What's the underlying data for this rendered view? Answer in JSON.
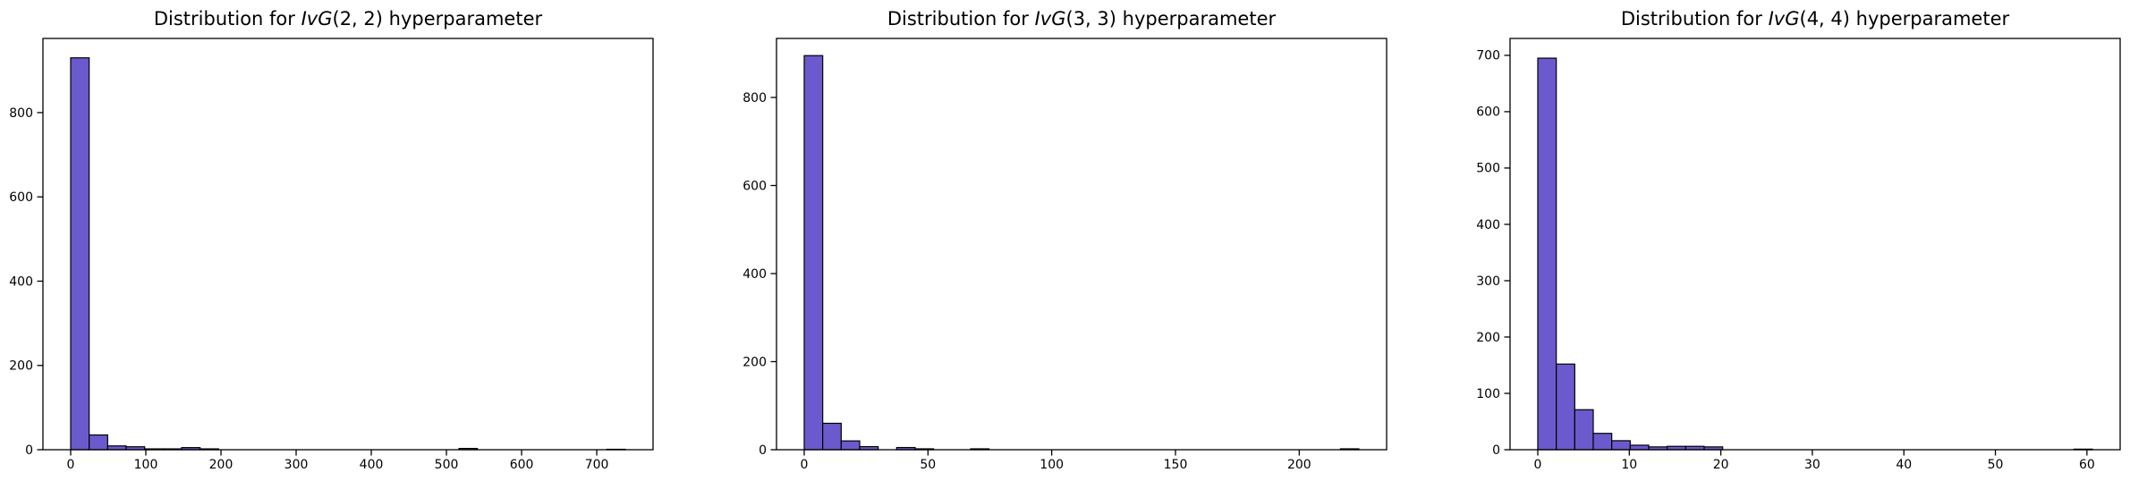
{
  "figure": {
    "background": "#ffffff",
    "bar_fill": "#6a5acd",
    "bar_edge": "#000000",
    "axis_color": "#000000",
    "text_color": "#000000"
  },
  "chart_data": [
    {
      "type": "bar",
      "subtype": "histogram",
      "id": "ivg-2-2",
      "title": "Distribution for IvG(2, 2) hyperparameter",
      "title_prefix": "Distribution for ",
      "title_italic": "IvG",
      "title_args": "(2, 2)",
      "title_suffix": " hyperparameter",
      "bin_start": 0,
      "bin_width": 24.6,
      "counts": [
        930,
        35,
        9,
        7,
        2,
        2,
        5,
        2,
        0,
        0,
        0,
        0,
        0,
        0,
        0,
        0,
        0,
        0,
        0,
        0,
        0,
        3,
        0,
        0,
        0,
        0,
        0,
        0,
        0,
        1
      ],
      "xlim": [
        -36.9,
        774.9
      ],
      "ylim": [
        0,
        976
      ],
      "xticks": [
        0,
        100,
        200,
        300,
        400,
        500,
        600,
        700
      ],
      "yticks": [
        0,
        200,
        400,
        600,
        800
      ],
      "grid": false,
      "legend": null
    },
    {
      "type": "bar",
      "subtype": "histogram",
      "id": "ivg-3-3",
      "title": "Distribution for IvG(3, 3) hyperparameter",
      "title_prefix": "Distribution for ",
      "title_italic": "IvG",
      "title_args": "(3, 3)",
      "title_suffix": " hyperparameter",
      "bin_start": 0,
      "bin_width": 7.47,
      "counts": [
        895,
        60,
        20,
        7,
        0,
        5,
        2,
        0,
        0,
        2,
        0,
        0,
        0,
        0,
        0,
        0,
        0,
        0,
        0,
        0,
        0,
        0,
        0,
        0,
        0,
        0,
        0,
        0,
        0,
        2
      ],
      "xlim": [
        -11.2,
        235.3
      ],
      "ylim": [
        0,
        934
      ],
      "xticks": [
        0,
        50,
        100,
        150,
        200
      ],
      "yticks": [
        0,
        200,
        400,
        600,
        800
      ],
      "grid": false,
      "legend": null
    },
    {
      "type": "bar",
      "subtype": "histogram",
      "id": "ivg-4-4",
      "title": "Distribution for IvG(4, 4) hyperparameter",
      "title_prefix": "Distribution for ",
      "title_italic": "IvG",
      "title_args": "(4, 4)",
      "title_suffix": " hyperparameter",
      "bin_start": 0,
      "bin_width": 2.02,
      "counts": [
        695,
        152,
        71,
        29,
        16,
        8,
        5,
        6,
        6,
        5,
        0,
        0,
        0,
        0,
        0,
        0,
        0,
        0,
        0,
        0,
        0,
        0,
        0,
        0,
        0,
        0,
        0,
        0,
        0,
        1
      ],
      "xlim": [
        -3.03,
        63.63
      ],
      "ylim": [
        0,
        730
      ],
      "xticks": [
        0,
        10,
        20,
        30,
        40,
        50,
        60
      ],
      "yticks": [
        0,
        100,
        200,
        300,
        400,
        500,
        600,
        700
      ],
      "grid": false,
      "legend": null
    }
  ]
}
